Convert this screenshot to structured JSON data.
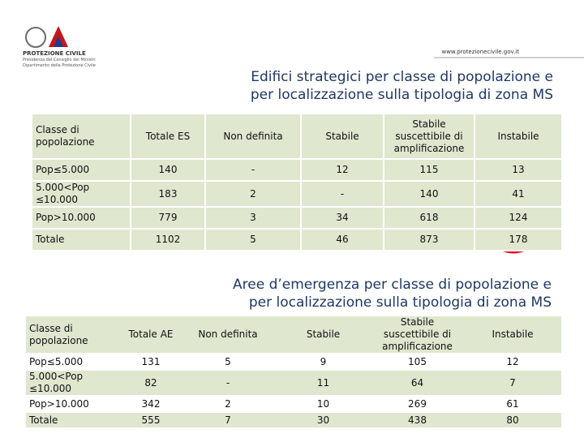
{
  "header": {
    "logo_title": "PROTEZIONE CIVILE",
    "logo_line1": "Presidenza del Consiglio dei Ministri",
    "logo_line2": "Dipartimento della Protezione Civile",
    "url": "www.protezionecivile.gov.it"
  },
  "section1": {
    "title": [
      "Edifici strategici per classe di popolazione e",
      "per localizzazione sulla tipologia di zona MS"
    ],
    "table": {
      "header": [
        "Classe di popolazione",
        "Totale ES",
        "Non definita",
        "Stabile",
        "Stabile suscettibile di amplificazione",
        "Instabile"
      ],
      "rows": [
        [
          "Pop≤5.000",
          "140",
          "-",
          "12",
          "115",
          "13"
        ],
        [
          "5.000<Pop ≤10.000",
          "183",
          "2",
          "-",
          "140",
          "41"
        ],
        [
          "Pop>10.000",
          "779",
          "3",
          "34",
          "618",
          "124"
        ],
        [
          "Totale",
          "1102",
          "5",
          "46",
          "873",
          "178"
        ]
      ]
    }
  },
  "section2": {
    "title": [
      "Aree d’emergenza per classe di popolazione e",
      "per  localizzazione sulla tipologia di zona MS"
    ],
    "table": {
      "header": [
        "Classe di popolazione",
        "Totale AE",
        "Non definita",
        "Stabile",
        "Stabile suscettibile di amplificazione",
        "Instabile"
      ],
      "rows": [
        [
          "Pop≤5.000",
          "131",
          "5",
          "9",
          "105",
          "12"
        ],
        [
          "5.000<Pop ≤10.000",
          "82",
          "-",
          "11",
          "64",
          "7"
        ],
        [
          "Pop>10.000",
          "342",
          "2",
          "10",
          "269",
          "61"
        ],
        [
          "Totale",
          "555",
          "7",
          "30",
          "438",
          "80"
        ]
      ]
    }
  }
}
